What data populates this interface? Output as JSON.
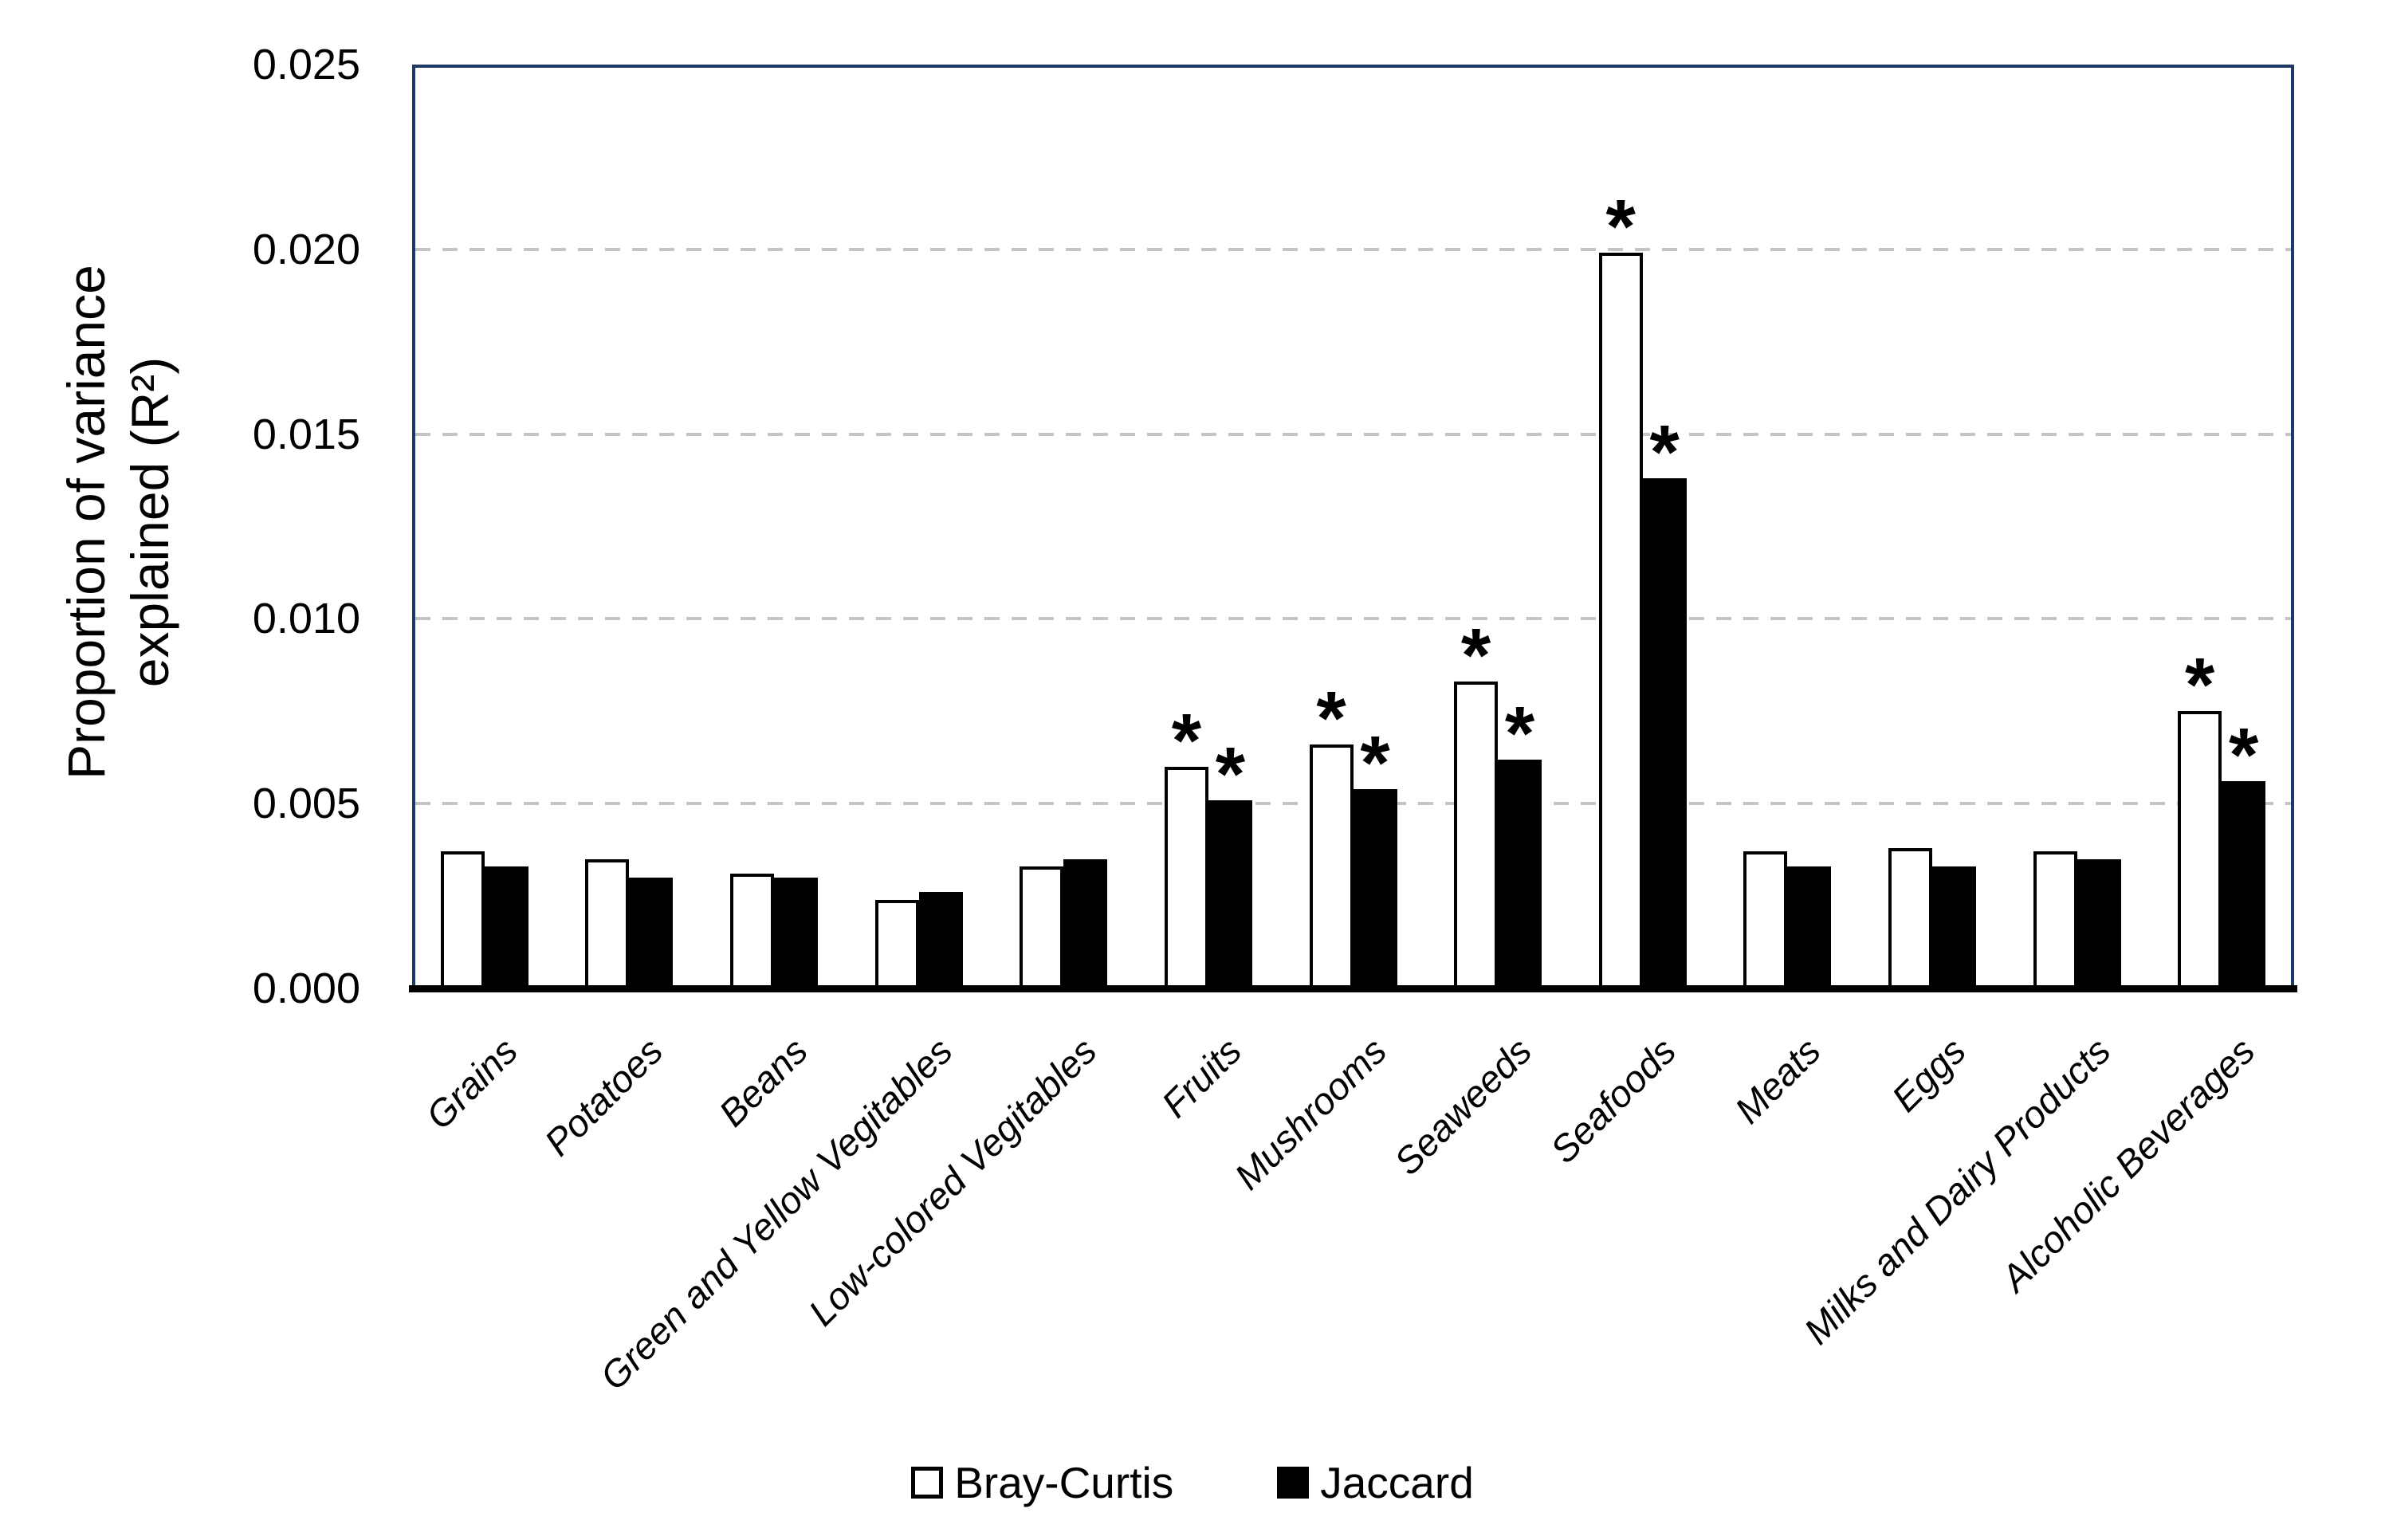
{
  "chart_data": {
    "type": "bar",
    "title": "",
    "ylabel_line1": "Proportion of variance",
    "ylabel_line2": "explained (R²)",
    "ylabel_full": "Proportion of variance explained (R²)",
    "categories": [
      "Grains",
      "Potatoes",
      "Beans",
      "Green and Yellow Vegitables",
      "Low-colored Vegitables",
      "Fruits",
      "Mushrooms",
      "Seaweeds",
      "Seafoods",
      "Meats",
      "Eggs",
      "Milks and Dairy Products",
      "Alcoholic Beverages"
    ],
    "series": [
      {
        "name": "Bray-Curtis",
        "fill": "#ffffff",
        "values": [
          0.0037,
          0.0035,
          0.0031,
          0.0024,
          0.0033,
          0.006,
          0.0066,
          0.0083,
          0.0199,
          0.0037,
          0.0038,
          0.0037,
          0.0075
        ]
      },
      {
        "name": "Jaccard",
        "fill": "#000000",
        "values": [
          0.0033,
          0.003,
          0.003,
          0.0026,
          0.0035,
          0.0051,
          0.0054,
          0.0062,
          0.0138,
          0.0033,
          0.0033,
          0.0035,
          0.0056
        ]
      }
    ],
    "significant_categories": [
      "Fruits",
      "Mushrooms",
      "Seaweeds",
      "Seafoods",
      "Alcoholic Beverages"
    ],
    "significance_marker": "*",
    "ylim": [
      0,
      0.025
    ],
    "ytick_step": 0.005,
    "yticks": [
      "0.000",
      "0.005",
      "0.010",
      "0.015",
      "0.020",
      "0.025"
    ],
    "grid": "horizontal-dashed",
    "legend_position": "bottom-center"
  },
  "legend": {
    "items": [
      {
        "label": "Bray-Curtis",
        "swatch": "open"
      },
      {
        "label": "Jaccard",
        "swatch": "filled"
      }
    ]
  },
  "colors": {
    "frame": "#203864",
    "gridline": "#c4c4c4",
    "bar_outline": "#000000",
    "background": "#ffffff",
    "text": "#000000"
  }
}
